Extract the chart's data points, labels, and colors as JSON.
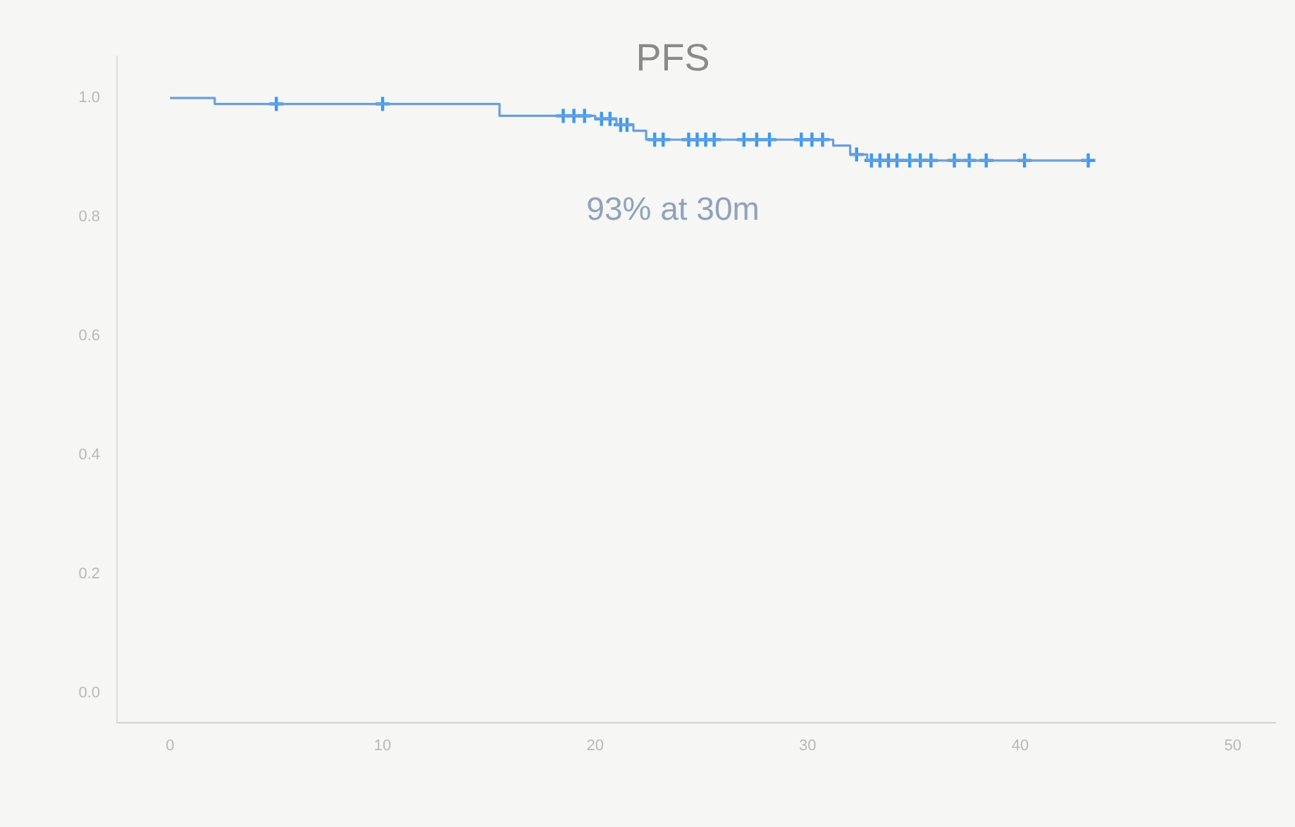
{
  "chart_data": {
    "type": "step",
    "title": "PFS",
    "annotations": [
      "93% at 30m"
    ],
    "series": [
      {
        "color": "#6a9fdc",
        "marker": "none",
        "x": [
          0,
          2.1,
          15.5,
          20.0,
          21.0,
          21.8,
          22.4,
          31.2,
          32.0,
          32.8,
          43.2
        ],
        "values": [
          1.0,
          0.99,
          0.97,
          0.965,
          0.955,
          0.945,
          0.93,
          0.92,
          0.905,
          0.895,
          0.895
        ]
      },
      {
        "type": "scatter",
        "color": "#3a9af0",
        "marker": "cross",
        "x": [
          5,
          10,
          18.5,
          19.0,
          19.5,
          20.3,
          20.7,
          21.2,
          21.5,
          22.8,
          23.2,
          24.4,
          24.8,
          25.2,
          25.6,
          27.0,
          27.6,
          28.2,
          29.7,
          30.2,
          30.7,
          32.3,
          33.0,
          33.4,
          33.8,
          34.2,
          34.8,
          35.3,
          35.8,
          36.9,
          37.6,
          38.4,
          40.2,
          43.2
        ],
        "values": [
          0.99,
          0.99,
          0.97,
          0.97,
          0.97,
          0.965,
          0.965,
          0.955,
          0.955,
          0.93,
          0.93,
          0.93,
          0.93,
          0.93,
          0.93,
          0.93,
          0.93,
          0.93,
          0.93,
          0.93,
          0.93,
          0.905,
          0.895,
          0.895,
          0.895,
          0.895,
          0.895,
          0.895,
          0.895,
          0.895,
          0.895,
          0.895,
          0.895,
          0.895
        ]
      }
    ],
    "xlim": [
      -2.5,
      52
    ],
    "xticks": [
      0,
      10,
      20,
      30,
      40,
      50
    ],
    "ylim": [
      -0.05,
      1.07
    ],
    "yticks": [
      {
        "value": 0,
        "label": "0.0"
      },
      {
        "value": 0.2,
        "label": "0.2"
      },
      {
        "value": 0.4,
        "label": "0.4"
      },
      {
        "value": 0.6,
        "label": "0.6"
      },
      {
        "value": 0.8,
        "label": "0.8"
      },
      {
        "value": 1,
        "label": "1.0"
      }
    ],
    "grid": false,
    "legend": false
  }
}
